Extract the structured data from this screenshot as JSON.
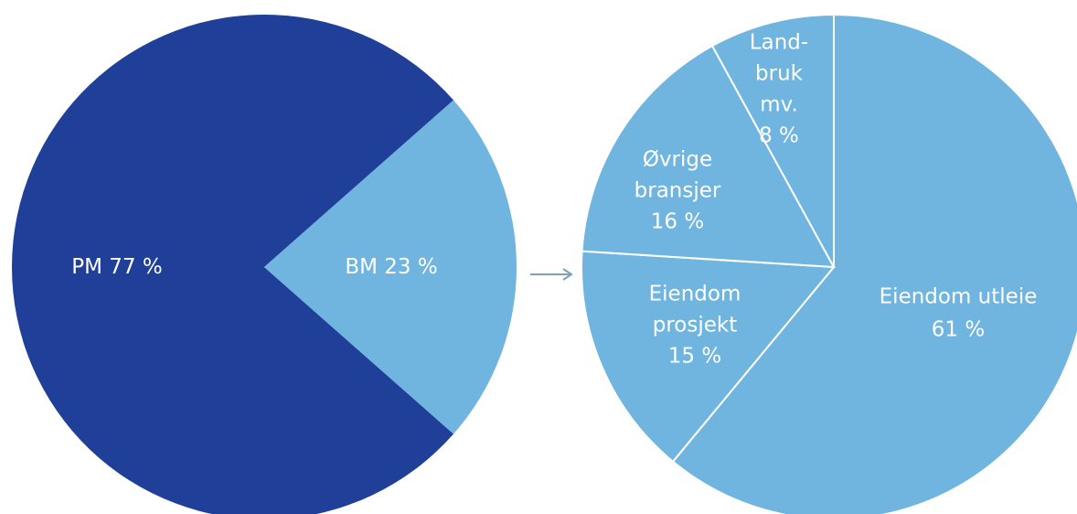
{
  "chart_data": [
    {
      "type": "pie",
      "categories": [
        [
          "PM"
        ],
        [
          "BM"
        ]
      ],
      "values": [
        77,
        23
      ],
      "value_labels": [
        "77 %",
        "23 %"
      ],
      "colors": [
        "#1f3f99",
        "#6fb5e0"
      ]
    },
    {
      "type": "pie",
      "categories": [
        [
          "Eiendom utleie"
        ],
        [
          "Eiendom",
          "prosjekt"
        ],
        [
          "Øvrige",
          "bransjer"
        ],
        [
          "Land-",
          "bruk",
          "mv."
        ]
      ],
      "values": [
        61,
        15,
        16,
        8
      ],
      "value_labels": [
        "61 %",
        "15 %",
        "16 %",
        "8 %"
      ],
      "colors": [
        "#6fb5e0",
        "#6fb5e0",
        "#6fb5e0",
        "#6fb5e0"
      ]
    }
  ]
}
